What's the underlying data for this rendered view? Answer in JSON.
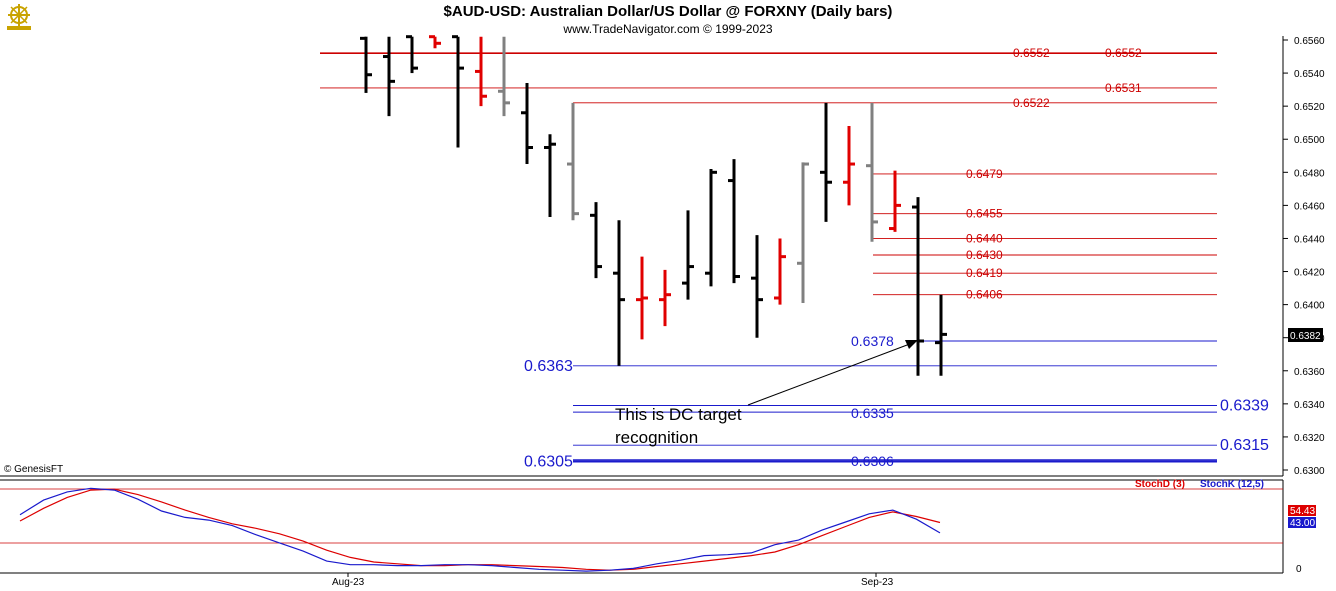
{
  "header": {
    "title": "$AUD-USD:  Australian Dollar/US Dollar @ FORXNY  (Daily bars)",
    "subtitle": "www.TradeNavigator.com © 1999-2023",
    "copyright": "© GenesisFT",
    "logo_icon": "ship-wheel-logo-icon"
  },
  "colors": {
    "up": "#000000",
    "down": "#e00000",
    "neutral": "#808080",
    "red_level": "#cc0000",
    "blue_level": "#1a1acc",
    "stoch_d": "#dd0000",
    "stoch_k": "#1a1acc"
  },
  "chart_data": [
    {
      "type": "ohlc",
      "title": "$AUD-USD:  Australian Dollar/US Dollar @ FORXNY  (Daily bars)",
      "ylim": [
        0.6292,
        0.6562
      ],
      "y_ticks": [
        "0.6560",
        "0.6540",
        "0.6520",
        "0.6500",
        "0.6480",
        "0.6460",
        "0.6440",
        "0.6420",
        "0.6400",
        "0.6380",
        "0.6360",
        "0.6340",
        "0.6320",
        "0.6300"
      ],
      "x_labels": [
        "Aug-23",
        "Sep-23"
      ],
      "last_price": "0.6382",
      "bars": [
        {
          "o": 0.6561,
          "h": 0.6562,
          "l": 0.6528,
          "c": 0.6539,
          "color": "up"
        },
        {
          "o": 0.655,
          "h": 0.6562,
          "l": 0.6514,
          "c": 0.6535,
          "color": "up"
        },
        {
          "o": 0.6562,
          "h": 0.6562,
          "l": 0.654,
          "c": 0.6543,
          "color": "up"
        },
        {
          "o": 0.6562,
          "h": 0.6562,
          "l": 0.6555,
          "c": 0.6558,
          "color": "down"
        },
        {
          "o": 0.6562,
          "h": 0.6562,
          "l": 0.6495,
          "c": 0.6543,
          "color": "up"
        },
        {
          "o": 0.6541,
          "h": 0.6562,
          "l": 0.652,
          "c": 0.6526,
          "color": "down"
        },
        {
          "o": 0.6529,
          "h": 0.6562,
          "l": 0.6514,
          "c": 0.6522,
          "color": "neutral"
        },
        {
          "o": 0.6516,
          "h": 0.6534,
          "l": 0.6485,
          "c": 0.6495,
          "color": "up"
        },
        {
          "o": 0.6495,
          "h": 0.6503,
          "l": 0.6453,
          "c": 0.6497,
          "color": "up"
        },
        {
          "o": 0.6485,
          "h": 0.6522,
          "l": 0.6451,
          "c": 0.6455,
          "color": "neutral"
        },
        {
          "o": 0.6454,
          "h": 0.6462,
          "l": 0.6416,
          "c": 0.6423,
          "color": "up"
        },
        {
          "o": 0.6419,
          "h": 0.6451,
          "l": 0.6363,
          "c": 0.6403,
          "color": "up"
        },
        {
          "o": 0.6403,
          "h": 0.6429,
          "l": 0.6379,
          "c": 0.6404,
          "color": "down"
        },
        {
          "o": 0.6403,
          "h": 0.6421,
          "l": 0.6387,
          "c": 0.6406,
          "color": "down"
        },
        {
          "o": 0.6413,
          "h": 0.6457,
          "l": 0.6403,
          "c": 0.6423,
          "color": "up"
        },
        {
          "o": 0.6419,
          "h": 0.6482,
          "l": 0.6411,
          "c": 0.648,
          "color": "up"
        },
        {
          "o": 0.6475,
          "h": 0.6488,
          "l": 0.6413,
          "c": 0.6417,
          "color": "up"
        },
        {
          "o": 0.6416,
          "h": 0.6442,
          "l": 0.638,
          "c": 0.6403,
          "color": "up"
        },
        {
          "o": 0.6404,
          "h": 0.644,
          "l": 0.64,
          "c": 0.6429,
          "color": "down"
        },
        {
          "o": 0.6425,
          "h": 0.6486,
          "l": 0.6401,
          "c": 0.6485,
          "color": "neutral"
        },
        {
          "o": 0.648,
          "h": 0.6522,
          "l": 0.645,
          "c": 0.6474,
          "color": "up"
        },
        {
          "o": 0.6474,
          "h": 0.6508,
          "l": 0.646,
          "c": 0.6485,
          "color": "down"
        },
        {
          "o": 0.6484,
          "h": 0.6522,
          "l": 0.6438,
          "c": 0.645,
          "color": "neutral"
        },
        {
          "o": 0.6446,
          "h": 0.6481,
          "l": 0.6444,
          "c": 0.646,
          "color": "down"
        },
        {
          "o": 0.6459,
          "h": 0.6465,
          "l": 0.6357,
          "c": 0.6378,
          "color": "up"
        },
        {
          "o": 0.6377,
          "h": 0.6406,
          "l": 0.6357,
          "c": 0.6382,
          "color": "up"
        }
      ],
      "red_levels": [
        {
          "value": 0.6552,
          "label": "0.6552",
          "label2": "0.6552"
        },
        {
          "value": 0.6531,
          "label": "0.6531"
        },
        {
          "value": 0.6522,
          "label": "0.6522"
        },
        {
          "value": 0.6479,
          "label": "0.6479"
        },
        {
          "value": 0.6455,
          "label": "0.6455"
        },
        {
          "value": 0.644,
          "label": "0.6440"
        },
        {
          "value": 0.643,
          "label": "0.6430"
        },
        {
          "value": 0.6419,
          "label": "0.6419"
        },
        {
          "value": 0.6406,
          "label": "0.6406"
        }
      ],
      "blue_levels": [
        {
          "value": 0.6378,
          "label": "0.6378"
        },
        {
          "value": 0.6363,
          "label": "0.6363"
        },
        {
          "value": 0.6339,
          "label": "0.6339"
        },
        {
          "value": 0.6335,
          "label": "0.6335"
        },
        {
          "value": 0.6315,
          "label": "0.6315"
        },
        {
          "value": 0.6306,
          "label": "0.6306"
        },
        {
          "value": 0.6305,
          "label": "0.6305"
        }
      ],
      "annotations": [
        "This is DC target",
        "recognition"
      ]
    },
    {
      "type": "line",
      "title": "",
      "ylim": [
        0,
        100
      ],
      "y_ticks": [
        "0"
      ],
      "legend": [
        "StochD (3)",
        "StochK (12,5)"
      ],
      "last_values": {
        "stoch_d": "54.43",
        "stoch_k": "43.00"
      },
      "series": [
        {
          "name": "StochD (3)",
          "values": [
            56,
            70,
            82,
            90,
            91,
            85,
            77,
            68,
            60,
            53,
            48,
            42,
            34,
            24,
            16,
            11,
            9,
            7,
            7,
            8,
            8,
            7,
            6,
            5,
            3,
            2,
            3,
            6,
            9,
            12,
            15,
            18,
            22,
            30,
            40,
            50,
            60,
            66,
            61,
            54.43
          ]
        },
        {
          "name": "StochK (12,5)",
          "values": [
            63,
            79,
            88,
            92,
            90,
            80,
            67,
            60,
            57,
            51,
            41,
            32,
            23,
            12,
            8,
            8,
            7,
            7,
            8,
            8,
            7,
            5,
            3,
            2,
            1,
            2,
            4,
            9,
            13,
            18,
            19,
            21,
            30,
            35,
            46,
            55,
            64,
            68,
            58,
            43.0
          ]
        }
      ]
    }
  ]
}
